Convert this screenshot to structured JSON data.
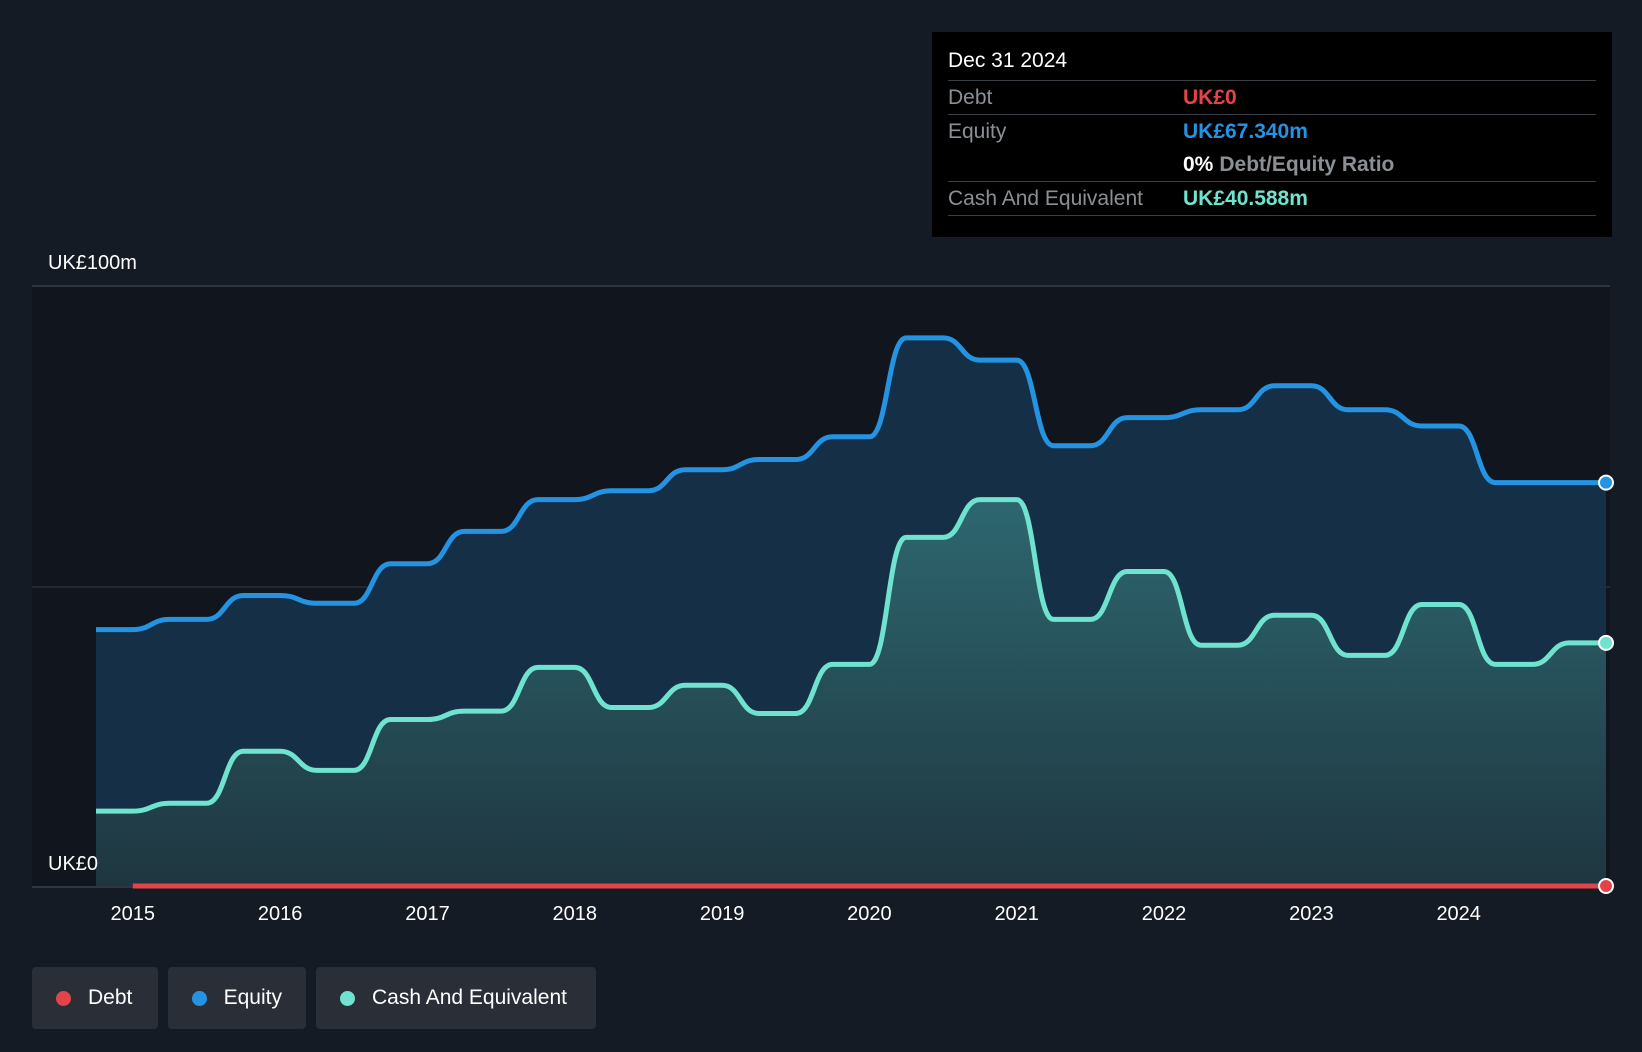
{
  "colors": {
    "debt": "#e5434a",
    "equity": "#2494e2",
    "cash": "#6fe3cf"
  },
  "tooltip": {
    "date": "Dec 31 2024",
    "debt_label": "Debt",
    "debt_value": "UK£0",
    "equity_label": "Equity",
    "equity_value": "UK£67.340m",
    "ratio_value": "0%",
    "ratio_label": "Debt/Equity Ratio",
    "cash_label": "Cash And Equivalent",
    "cash_value": "UK£40.588m"
  },
  "legend": {
    "debt": "Debt",
    "equity": "Equity",
    "cash": "Cash And Equivalent"
  },
  "chart_data": {
    "type": "area",
    "ylim": [
      0,
      100
    ],
    "y_tick_labels": [
      "UK£100m",
      "UK£0"
    ],
    "x_tick_labels": [
      "2015",
      "2016",
      "2017",
      "2018",
      "2019",
      "2020",
      "2021",
      "2022",
      "2023",
      "2024"
    ],
    "xlim": [
      2014.75,
      2025.0
    ],
    "series": [
      {
        "name": "Equity",
        "points": [
          [
            2014.75,
            42.8
          ],
          [
            2015.0,
            42.8
          ],
          [
            2015.25,
            44.5
          ],
          [
            2015.5,
            44.5
          ],
          [
            2015.75,
            48.5
          ],
          [
            2016.0,
            48.5
          ],
          [
            2016.25,
            47.2
          ],
          [
            2016.5,
            47.2
          ],
          [
            2016.75,
            53.8
          ],
          [
            2017.0,
            53.8
          ],
          [
            2017.25,
            59.2
          ],
          [
            2017.5,
            59.2
          ],
          [
            2017.75,
            64.5
          ],
          [
            2018.0,
            64.5
          ],
          [
            2018.25,
            66.0
          ],
          [
            2018.5,
            66.0
          ],
          [
            2018.75,
            69.5
          ],
          [
            2019.0,
            69.5
          ],
          [
            2019.25,
            71.2
          ],
          [
            2019.5,
            71.2
          ],
          [
            2019.75,
            75.0
          ],
          [
            2020.0,
            75.0
          ],
          [
            2020.25,
            91.5
          ],
          [
            2020.5,
            91.5
          ],
          [
            2020.75,
            87.8
          ],
          [
            2021.0,
            87.8
          ],
          [
            2021.25,
            73.5
          ],
          [
            2021.5,
            73.5
          ],
          [
            2021.75,
            78.2
          ],
          [
            2022.0,
            78.2
          ],
          [
            2022.25,
            79.5
          ],
          [
            2022.5,
            79.5
          ],
          [
            2022.75,
            83.5
          ],
          [
            2023.0,
            83.5
          ],
          [
            2023.25,
            79.5
          ],
          [
            2023.5,
            79.5
          ],
          [
            2023.75,
            76.8
          ],
          [
            2024.0,
            76.8
          ],
          [
            2024.25,
            67.34
          ],
          [
            2024.5,
            67.34
          ],
          [
            2025.0,
            67.34
          ]
        ]
      },
      {
        "name": "Cash And Equivalent",
        "points": [
          [
            2014.75,
            12.5
          ],
          [
            2015.0,
            12.5
          ],
          [
            2015.25,
            13.8
          ],
          [
            2015.5,
            13.8
          ],
          [
            2015.75,
            22.5
          ],
          [
            2016.0,
            22.5
          ],
          [
            2016.25,
            19.3
          ],
          [
            2016.5,
            19.3
          ],
          [
            2016.75,
            27.8
          ],
          [
            2017.0,
            27.8
          ],
          [
            2017.25,
            29.2
          ],
          [
            2017.5,
            29.2
          ],
          [
            2017.75,
            36.5
          ],
          [
            2018.0,
            36.5
          ],
          [
            2018.25,
            29.8
          ],
          [
            2018.5,
            29.8
          ],
          [
            2018.75,
            33.5
          ],
          [
            2019.0,
            33.5
          ],
          [
            2019.25,
            28.8
          ],
          [
            2019.5,
            28.8
          ],
          [
            2019.75,
            37.0
          ],
          [
            2020.0,
            37.0
          ],
          [
            2020.25,
            58.2
          ],
          [
            2020.5,
            58.2
          ],
          [
            2020.75,
            64.5
          ],
          [
            2021.0,
            64.5
          ],
          [
            2021.25,
            44.5
          ],
          [
            2021.5,
            44.5
          ],
          [
            2021.75,
            52.5
          ],
          [
            2022.0,
            52.5
          ],
          [
            2022.25,
            40.2
          ],
          [
            2022.5,
            40.2
          ],
          [
            2022.75,
            45.2
          ],
          [
            2023.0,
            45.2
          ],
          [
            2023.25,
            38.5
          ],
          [
            2023.5,
            38.5
          ],
          [
            2023.75,
            47.0
          ],
          [
            2024.0,
            47.0
          ],
          [
            2024.25,
            37.0
          ],
          [
            2024.5,
            37.0
          ],
          [
            2024.75,
            40.588
          ],
          [
            2025.0,
            40.588
          ]
        ]
      },
      {
        "name": "Debt",
        "points": [
          [
            2015.0,
            0
          ],
          [
            2025.0,
            0
          ]
        ]
      }
    ]
  }
}
